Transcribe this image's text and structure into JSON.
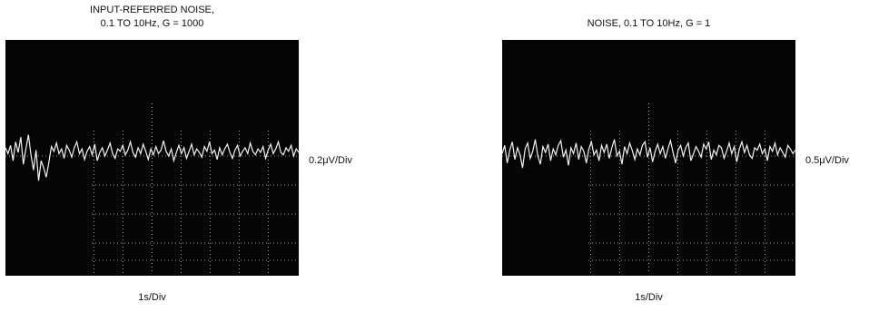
{
  "chart_data": [
    {
      "type": "line",
      "title_lines": [
        "INPUT-REFERRED NOISE,",
        "0.1 TO 10Hz, G = 1000"
      ],
      "y_scale_label": "0.2μV/Div",
      "x_scale_label": "1s/Div",
      "grid": "partial",
      "series": [
        {
          "y": [
            0.35,
            0.1,
            0.45,
            -0.2,
            0.6,
            0.15,
            0.8,
            -0.35,
            0.3,
            0.9,
            0.05,
            -0.6,
            0.25,
            -1.05,
            -0.2,
            -0.5,
            -0.9,
            -0.3,
            0.4,
            0.2,
            0.55,
            0.1,
            0.3,
            -0.1,
            0.45,
            0.25,
            -0.05,
            0.35,
            0.6,
            0.1,
            0.3,
            -0.15,
            0.2,
            0.4,
            0.05,
            0.5,
            -0.2,
            0.15,
            0.35,
            0.0,
            0.25,
            0.55,
            0.1,
            -0.1,
            0.3,
            0.2,
            0.45,
            0.05,
            0.25,
            0.6,
            0.15,
            -0.05,
            0.35,
            0.1,
            0.5,
            0.2,
            -0.15,
            0.3,
            0.05,
            0.4,
            0.1,
            0.25,
            0.65,
            0.2,
            0.0,
            0.3,
            -0.2,
            0.15,
            0.45,
            0.1,
            0.35,
            -0.1,
            0.2,
            0.5,
            0.05,
            0.3,
            0.15,
            -0.05,
            0.4,
            0.2,
            0.6,
            0.1,
            0.25,
            -0.15,
            0.35,
            0.05,
            0.3,
            0.5,
            0.15,
            -0.1,
            0.25,
            0.45,
            0.0,
            0.2,
            0.35,
            0.1,
            0.55,
            0.2,
            0.05,
            0.3,
            0.15,
            0.4,
            -0.1,
            0.25,
            0.5,
            0.1,
            0.3,
            0.6,
            0.15,
            0.05,
            0.35,
            0.2,
            0.45,
            0.0,
            0.3,
            0.15
          ]
        }
      ]
    },
    {
      "type": "line",
      "title_lines": [
        "NOISE, 0.1 TO 10Hz, G = 1"
      ],
      "y_scale_label": "0.5μV/Div",
      "x_scale_label": "1s/Div",
      "grid": "partial",
      "series": [
        {
          "y": [
            0.1,
            0.45,
            -0.3,
            0.25,
            0.6,
            -0.15,
            0.35,
            0.05,
            -0.5,
            0.3,
            0.55,
            -0.1,
            0.2,
            0.7,
            0.0,
            -0.35,
            0.4,
            0.15,
            0.5,
            -0.2,
            0.3,
            0.05,
            0.45,
            0.65,
            -0.05,
            0.25,
            -0.4,
            0.35,
            0.1,
            0.55,
            -0.15,
            0.4,
            0.2,
            -0.3,
            0.3,
            0.6,
            0.05,
            0.25,
            -0.2,
            0.45,
            0.15,
            0.5,
            -0.1,
            0.35,
            0.7,
            0.0,
            0.2,
            -0.35,
            0.4,
            0.1,
            0.55,
            0.25,
            -0.15,
            0.3,
            0.05,
            0.45,
            0.6,
            -0.05,
            0.35,
            -0.25,
            0.2,
            0.5,
            0.1,
            0.4,
            -0.1,
            0.3,
            0.65,
            0.15,
            -0.3,
            0.25,
            0.45,
            0.0,
            0.35,
            0.55,
            -0.2,
            0.1,
            0.4,
            0.2,
            -0.05,
            0.5,
            0.3,
            0.6,
            -0.15,
            0.25,
            0.05,
            0.45,
            0.35,
            -0.1,
            0.2,
            0.55,
            0.1,
            0.4,
            -0.25,
            0.3,
            0.6,
            0.15,
            0.45,
            0.05,
            -0.1,
            0.35,
            0.25,
            0.5,
            0.1,
            0.3,
            -0.2,
            0.4,
            0.2,
            0.55,
            0.05,
            0.35,
            0.15,
            -0.05,
            0.45,
            0.3,
            0.1,
            0.25
          ]
        }
      ]
    }
  ]
}
